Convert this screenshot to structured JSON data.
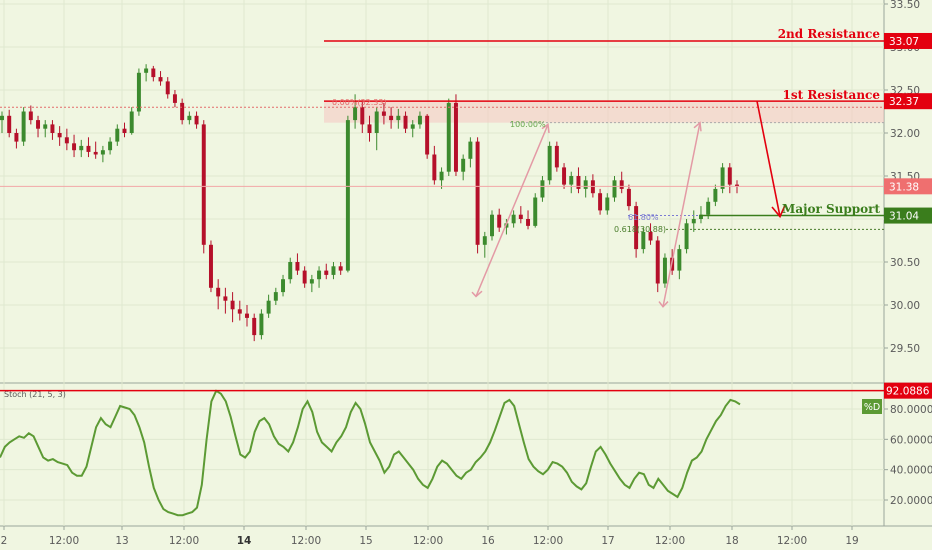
{
  "chart_data": [
    {
      "type": "candlestick",
      "yticks": [
        "33.50",
        "33.00",
        "32.50",
        "32.00",
        "31.50",
        "31.00",
        "30.50",
        "30.00",
        "29.50"
      ],
      "ylim": [
        29.15,
        33.55
      ],
      "xticks": [
        "2",
        "12:00",
        "13",
        "12:00",
        "14",
        "12:00",
        "15",
        "12:00",
        "16",
        "12:00",
        "17",
        "12:00",
        "18",
        "12:00",
        "19"
      ],
      "levels": [
        {
          "name": "2nd Resistance",
          "value": 33.07,
          "label": "33.07",
          "color": "#e3000f"
        },
        {
          "name": "1st Resistance",
          "value": 32.37,
          "label": "32.37",
          "color": "#e3000f"
        },
        {
          "name": "Major Support",
          "value": 31.04,
          "label": "31.04",
          "color": "#3a7d1c"
        },
        {
          "name": "",
          "value": 31.38,
          "label": "31.38",
          "color": "#ef6f6f"
        }
      ],
      "fib_labels": {
        "top": "100.00%",
        "top_old": "0.00%(32.33)",
        "mid": "61.80%",
        "low": "0.618(30.88)"
      },
      "current_price": 31.38,
      "candles": [
        [
          32.15,
          32.25,
          32.0,
          32.2
        ],
        [
          32.2,
          32.27,
          31.95,
          32.0
        ],
        [
          32.0,
          32.05,
          31.82,
          31.9
        ],
        [
          31.9,
          32.3,
          31.85,
          32.25
        ],
        [
          32.25,
          32.32,
          32.1,
          32.15
        ],
        [
          32.15,
          32.2,
          31.95,
          32.05
        ],
        [
          32.05,
          32.15,
          31.95,
          32.1
        ],
        [
          32.1,
          32.15,
          31.92,
          32.0
        ],
        [
          32.0,
          32.08,
          31.85,
          31.95
        ],
        [
          31.95,
          32.05,
          31.8,
          31.88
        ],
        [
          31.88,
          31.98,
          31.72,
          31.8
        ],
        [
          31.8,
          31.92,
          31.72,
          31.85
        ],
        [
          31.85,
          31.95,
          31.72,
          31.78
        ],
        [
          31.78,
          31.9,
          31.7,
          31.75
        ],
        [
          31.75,
          31.85,
          31.66,
          31.8
        ],
        [
          31.8,
          31.95,
          31.75,
          31.9
        ],
        [
          31.9,
          32.1,
          31.85,
          32.05
        ],
        [
          32.05,
          32.12,
          31.95,
          32.0
        ],
        [
          32.0,
          32.3,
          31.98,
          32.25
        ],
        [
          32.25,
          32.75,
          32.2,
          32.7
        ],
        [
          32.7,
          32.8,
          32.6,
          32.75
        ],
        [
          32.75,
          32.78,
          32.6,
          32.65
        ],
        [
          32.65,
          32.72,
          32.55,
          32.6
        ],
        [
          32.6,
          32.65,
          32.4,
          32.45
        ],
        [
          32.45,
          32.5,
          32.3,
          32.35
        ],
        [
          32.35,
          32.4,
          32.1,
          32.15
        ],
        [
          32.15,
          32.25,
          32.1,
          32.2
        ],
        [
          32.2,
          32.25,
          32.05,
          32.1
        ],
        [
          32.1,
          32.15,
          30.6,
          30.7
        ],
        [
          30.7,
          30.75,
          30.15,
          30.2
        ],
        [
          30.2,
          30.3,
          29.95,
          30.1
        ],
        [
          30.1,
          30.2,
          29.9,
          30.05
        ],
        [
          30.05,
          30.15,
          29.8,
          29.95
        ],
        [
          29.95,
          30.05,
          29.82,
          29.9
        ],
        [
          29.9,
          30.0,
          29.75,
          29.85
        ],
        [
          29.85,
          29.9,
          29.58,
          29.65
        ],
        [
          29.65,
          29.95,
          29.6,
          29.9
        ],
        [
          29.9,
          30.12,
          29.85,
          30.05
        ],
        [
          30.05,
          30.2,
          30.0,
          30.15
        ],
        [
          30.15,
          30.35,
          30.1,
          30.3
        ],
        [
          30.3,
          30.55,
          30.25,
          30.5
        ],
        [
          30.5,
          30.6,
          30.35,
          30.4
        ],
        [
          30.4,
          30.45,
          30.2,
          30.25
        ],
        [
          30.25,
          30.35,
          30.15,
          30.3
        ],
        [
          30.3,
          30.45,
          30.2,
          30.4
        ],
        [
          30.4,
          30.48,
          30.3,
          30.35
        ],
        [
          30.35,
          30.5,
          30.3,
          30.45
        ],
        [
          30.45,
          30.5,
          30.35,
          30.4
        ],
        [
          30.4,
          32.2,
          30.38,
          32.15
        ],
        [
          32.15,
          32.45,
          32.05,
          32.3
        ],
        [
          32.3,
          32.38,
          32.0,
          32.1
        ],
        [
          32.1,
          32.2,
          31.9,
          32.0
        ],
        [
          32.0,
          32.3,
          31.8,
          32.25
        ],
        [
          32.25,
          32.35,
          32.1,
          32.2
        ],
        [
          32.2,
          32.3,
          32.05,
          32.15
        ],
        [
          32.15,
          32.28,
          32.05,
          32.2
        ],
        [
          32.2,
          32.25,
          32.0,
          32.05
        ],
        [
          32.05,
          32.15,
          31.95,
          32.1
        ],
        [
          32.1,
          32.25,
          32.05,
          32.2
        ],
        [
          32.2,
          32.22,
          31.7,
          31.75
        ],
        [
          31.75,
          31.85,
          31.4,
          31.45
        ],
        [
          31.45,
          31.6,
          31.35,
          31.55
        ],
        [
          31.55,
          32.4,
          31.5,
          32.35
        ],
        [
          32.35,
          32.45,
          31.5,
          31.55
        ],
        [
          31.55,
          31.75,
          31.45,
          31.7
        ],
        [
          31.7,
          31.95,
          31.6,
          31.9
        ],
        [
          31.9,
          31.95,
          30.6,
          30.7
        ],
        [
          30.7,
          30.85,
          30.55,
          30.8
        ],
        [
          30.8,
          31.1,
          30.75,
          31.05
        ],
        [
          31.05,
          31.12,
          30.85,
          30.9
        ],
        [
          30.9,
          31.0,
          30.82,
          30.95
        ],
        [
          30.95,
          31.1,
          30.9,
          31.05
        ],
        [
          31.05,
          31.15,
          30.95,
          31.0
        ],
        [
          31.0,
          31.1,
          30.88,
          30.92
        ],
        [
          30.92,
          31.3,
          30.9,
          31.25
        ],
        [
          31.25,
          31.5,
          31.2,
          31.45
        ],
        [
          31.45,
          31.9,
          31.4,
          31.85
        ],
        [
          31.85,
          31.9,
          31.55,
          31.6
        ],
        [
          31.6,
          31.65,
          31.35,
          31.4
        ],
        [
          31.4,
          31.55,
          31.3,
          31.5
        ],
        [
          31.5,
          31.6,
          31.3,
          31.35
        ],
        [
          31.35,
          31.5,
          31.25,
          31.45
        ],
        [
          31.45,
          31.52,
          31.25,
          31.3
        ],
        [
          31.3,
          31.35,
          31.05,
          31.1
        ],
        [
          31.1,
          31.3,
          31.05,
          31.25
        ],
        [
          31.25,
          31.5,
          31.2,
          31.45
        ],
        [
          31.45,
          31.55,
          31.3,
          31.35
        ],
        [
          31.35,
          31.4,
          31.1,
          31.15
        ],
        [
          31.15,
          31.2,
          30.55,
          30.65
        ],
        [
          30.65,
          30.9,
          30.6,
          30.85
        ],
        [
          30.85,
          30.95,
          30.7,
          30.75
        ],
        [
          30.75,
          30.8,
          30.15,
          30.25
        ],
        [
          30.25,
          30.6,
          30.2,
          30.55
        ],
        [
          30.55,
          30.65,
          30.35,
          30.4
        ],
        [
          30.4,
          30.7,
          30.3,
          30.65
        ],
        [
          30.65,
          31.0,
          30.6,
          30.95
        ],
        [
          30.95,
          31.1,
          30.85,
          31.0
        ],
        [
          31.0,
          31.15,
          30.95,
          31.05
        ],
        [
          31.05,
          31.25,
          31.0,
          31.2
        ],
        [
          31.2,
          31.4,
          31.15,
          31.35
        ],
        [
          31.35,
          31.65,
          31.3,
          31.6
        ],
        [
          31.6,
          31.65,
          31.3,
          31.4
        ],
        [
          31.4,
          31.45,
          31.3,
          31.38
        ]
      ]
    },
    {
      "type": "line",
      "title": "Stoch (21, 5, 3)",
      "legend": "%D",
      "yticks": [
        "80.0000",
        "60.0000",
        "40.0000",
        "20.0000"
      ],
      "ylim": [
        10,
        96
      ],
      "top_level": 92.0886,
      "top_level_label": "92.0886",
      "values": [
        48,
        55,
        58,
        60,
        62,
        61,
        64,
        62,
        55,
        48,
        46,
        47,
        45,
        44,
        43,
        38,
        36,
        36,
        42,
        55,
        68,
        74,
        70,
        68,
        75,
        82,
        81,
        80,
        76,
        68,
        58,
        42,
        28,
        20,
        14,
        12,
        11,
        10,
        10,
        11,
        12,
        15,
        30,
        60,
        85,
        92,
        90,
        85,
        75,
        62,
        50,
        48,
        52,
        65,
        72,
        74,
        70,
        62,
        57,
        55,
        52,
        58,
        68,
        80,
        85,
        78,
        65,
        58,
        55,
        52,
        58,
        62,
        68,
        78,
        84,
        80,
        70,
        58,
        52,
        46,
        38,
        42,
        50,
        52,
        48,
        44,
        40,
        34,
        30,
        28,
        34,
        42,
        46,
        44,
        40,
        36,
        34,
        38,
        40,
        45,
        48,
        52,
        58,
        66,
        75,
        84,
        86,
        82,
        70,
        58,
        47,
        42,
        39,
        37,
        40,
        45,
        44,
        42,
        38,
        32,
        29,
        27,
        31,
        42,
        52,
        55,
        50,
        44,
        39,
        34,
        30,
        28,
        34,
        38,
        37,
        30,
        28,
        34,
        30,
        26,
        24,
        22,
        28,
        38,
        46,
        48,
        52,
        60,
        66,
        72,
        76,
        82,
        86,
        85,
        83
      ]
    }
  ],
  "levels_text": {
    "second": "2nd Resistance",
    "first": "1st Resistance",
    "support": "Major Support"
  }
}
